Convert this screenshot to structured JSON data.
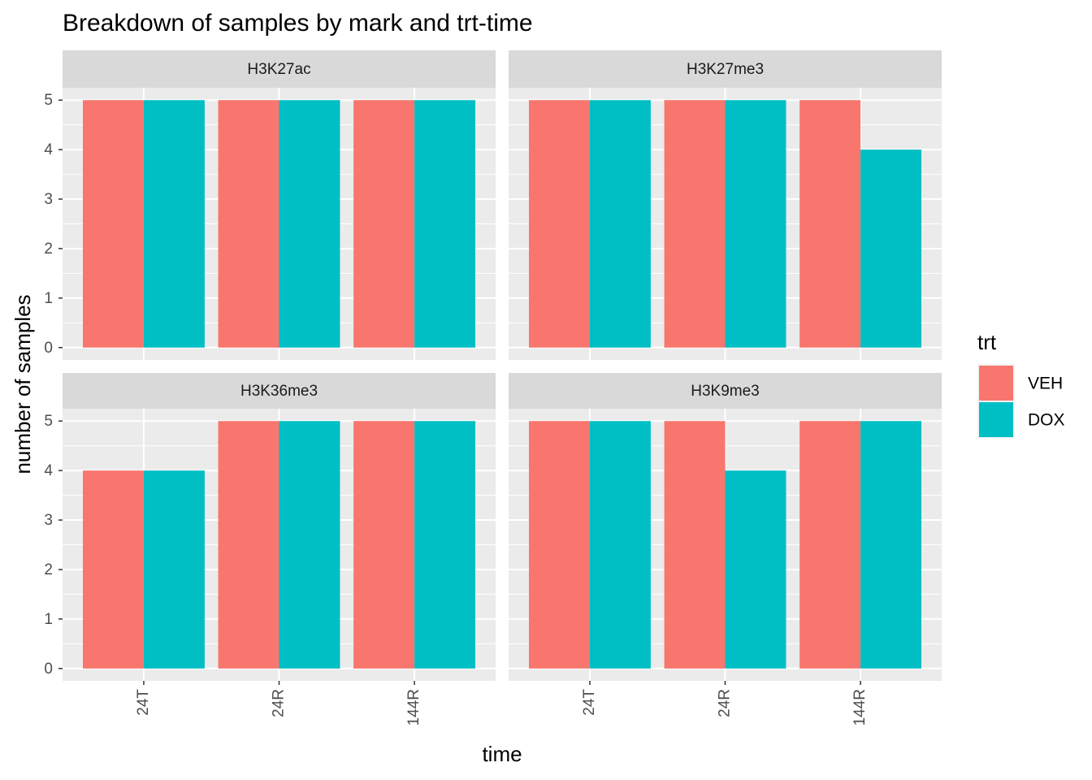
{
  "chart_data": {
    "type": "bar",
    "title": "Breakdown of samples by mark and trt-time",
    "x_label": "time",
    "y_label": "number of samples",
    "legend_title": "trt",
    "categories": [
      "24T",
      "24R",
      "144R"
    ],
    "series": [
      {
        "name": "VEH",
        "color": "#F8766D"
      },
      {
        "name": "DOX",
        "color": "#00BFC4"
      }
    ],
    "facets": [
      {
        "name": "H3K27ac",
        "values": [
          [
            5,
            5,
            5
          ],
          [
            5,
            5,
            5
          ]
        ]
      },
      {
        "name": "H3K27me3",
        "values": [
          [
            5,
            5,
            5
          ],
          [
            5,
            5,
            4
          ]
        ]
      },
      {
        "name": "H3K36me3",
        "values": [
          [
            4,
            5,
            5
          ],
          [
            4,
            5,
            5
          ]
        ]
      },
      {
        "name": "H3K9me3",
        "values": [
          [
            5,
            5,
            5
          ],
          [
            5,
            4,
            5
          ]
        ]
      }
    ],
    "ylim": [
      -0.25,
      5.25
    ],
    "yticks": [
      0,
      1,
      2,
      3,
      4,
      5
    ],
    "grid": true
  }
}
